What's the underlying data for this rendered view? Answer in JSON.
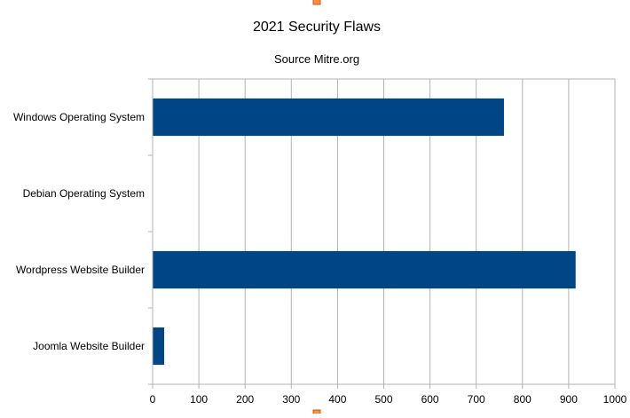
{
  "chart_data": {
    "type": "bar",
    "orientation": "horizontal",
    "title": "2021 Security Flaws",
    "subtitle": "Source Mitre.org",
    "categories": [
      "Windows Operating System",
      "Debian Operating System",
      "Wordpress Website Builder",
      "Joomla Website Builder"
    ],
    "values": [
      760,
      0,
      915,
      25
    ],
    "xlim": [
      0,
      1000
    ],
    "xticks": [
      0,
      100,
      200,
      300,
      400,
      500,
      600,
      700,
      800,
      900,
      1000
    ],
    "grid": true,
    "legend": "none",
    "bar_color": "#004586",
    "grid_color": "#b3b3b3",
    "handle_color": "#ff8c40"
  }
}
